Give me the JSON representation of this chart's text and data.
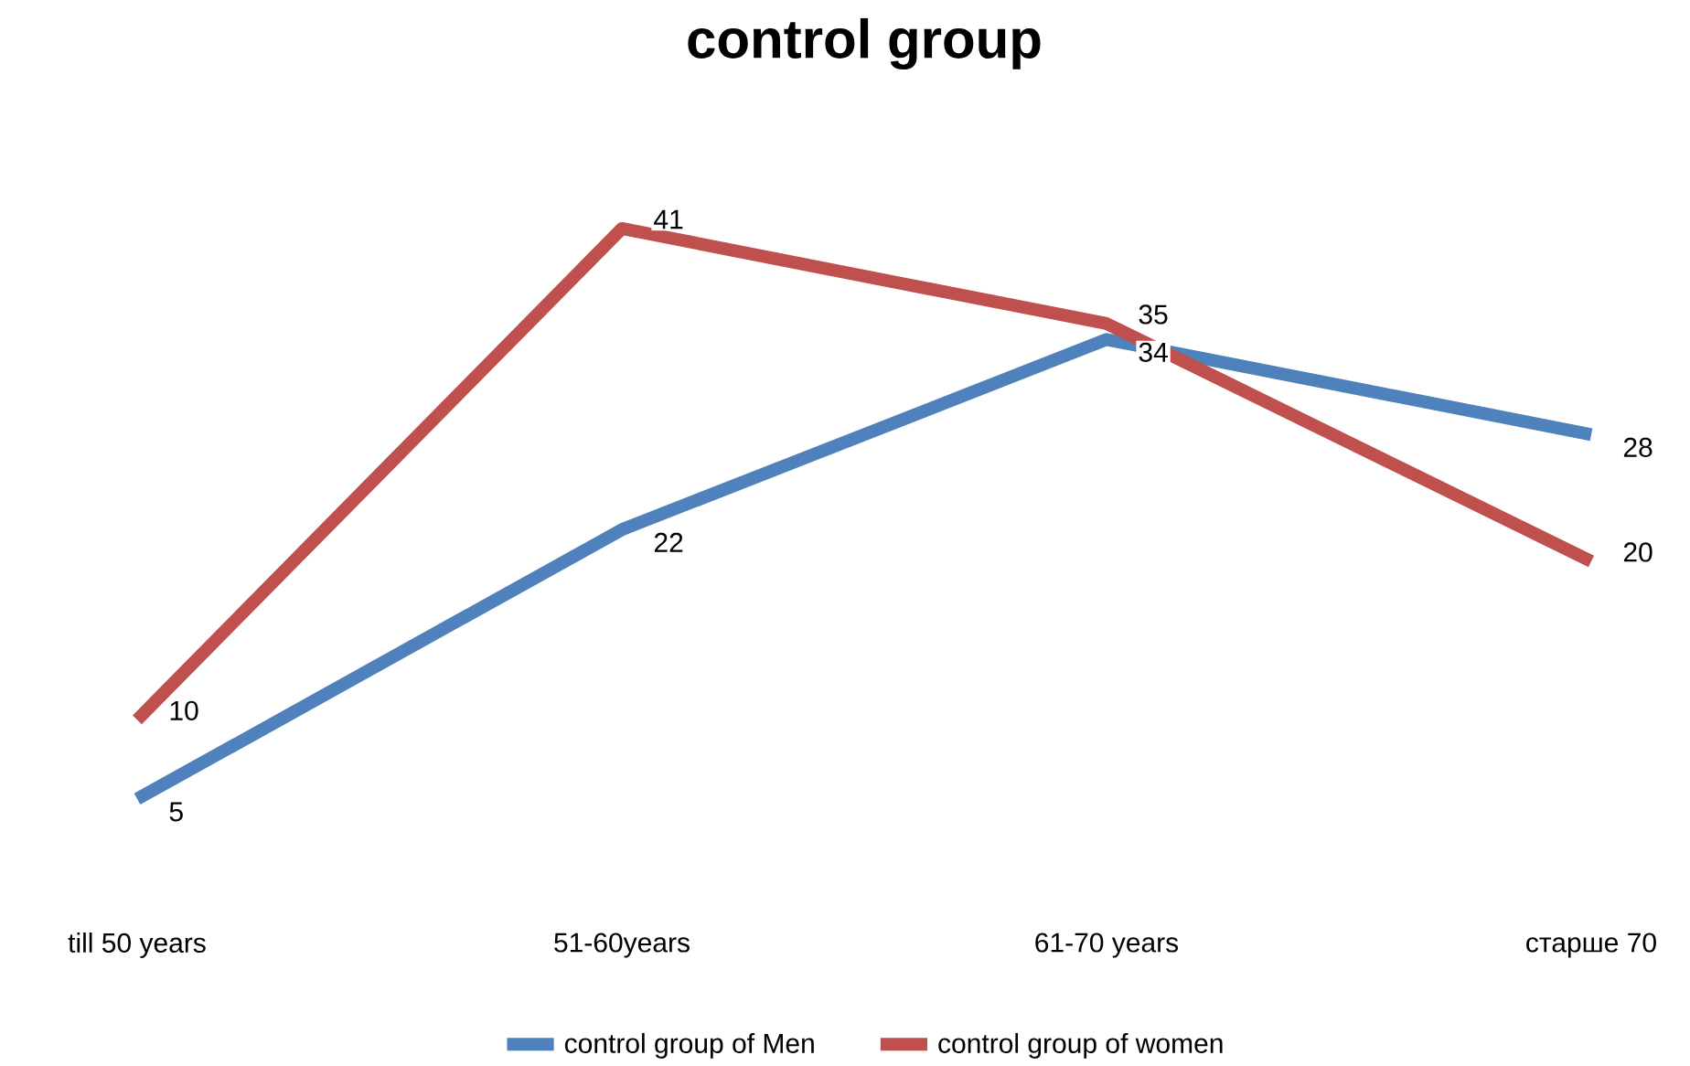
{
  "chart_data": {
    "type": "line",
    "title": "control group",
    "categories": [
      "till 50 years",
      "51-60years",
      "61-70 years",
      "старше 70"
    ],
    "series": [
      {
        "name": "control group of Men",
        "color": "#4f81bd",
        "values": [
          5,
          22,
          34,
          28
        ]
      },
      {
        "name": "control group of women",
        "color": "#c0504d",
        "values": [
          10,
          41,
          35,
          20
        ]
      }
    ],
    "data_labels": true,
    "legend": "bottom",
    "marker": "none",
    "line_style": "solid"
  }
}
